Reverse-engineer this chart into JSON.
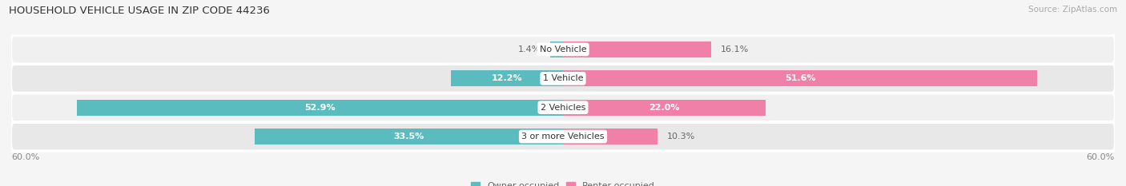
{
  "title": "HOUSEHOLD VEHICLE USAGE IN ZIP CODE 44236",
  "source": "Source: ZipAtlas.com",
  "categories": [
    "No Vehicle",
    "1 Vehicle",
    "2 Vehicles",
    "3 or more Vehicles"
  ],
  "owner_values": [
    1.4,
    12.2,
    52.9,
    33.5
  ],
  "renter_values": [
    16.1,
    51.6,
    22.0,
    10.3
  ],
  "owner_color": "#5bbcbf",
  "renter_color": "#f080a8",
  "row_bg_even": "#f0f0f0",
  "row_bg_odd": "#e8e8e8",
  "xlim": [
    -60,
    60
  ],
  "xtick_values": [
    -60,
    60
  ],
  "legend_owner": "Owner-occupied",
  "legend_renter": "Renter-occupied",
  "title_fontsize": 9.5,
  "source_fontsize": 7.5,
  "label_fontsize": 8,
  "tick_fontsize": 8,
  "bar_height": 0.55,
  "background_color": "#f5f5f5"
}
